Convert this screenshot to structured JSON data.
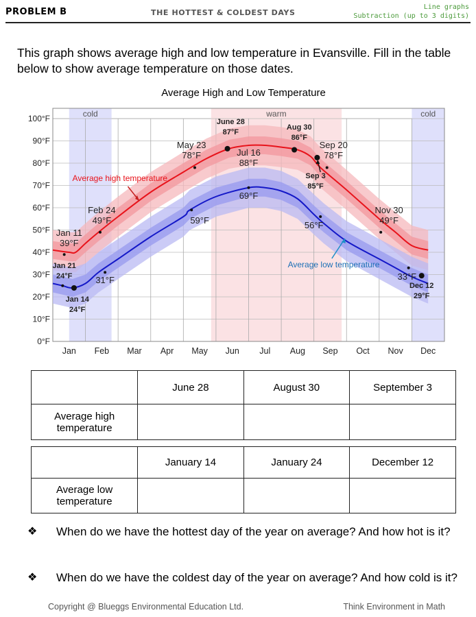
{
  "header": {
    "problem": "PROBLEM B",
    "title": "THE HOTTEST & COLDEST DAYS",
    "topic_line1": "Line graphs",
    "topic_line2": "Subtraction (up to 3 digits)"
  },
  "intro": "This graph shows average high and low temperature in Evansville.  Fill in the table below to show average temperature on those dates.",
  "chart_data": {
    "type": "line",
    "title": "Average High and Low Temperature",
    "categories": [
      "Jan",
      "Feb",
      "Mar",
      "Apr",
      "May",
      "Jun",
      "Jul",
      "Aug",
      "Sep",
      "Oct",
      "Nov",
      "Dec"
    ],
    "ylim": [
      0,
      100
    ],
    "yticks": [
      "0°F",
      "10°F",
      "20°F",
      "30°F",
      "40°F",
      "50°F",
      "60°F",
      "70°F",
      "80°F",
      "90°F",
      "100°F"
    ],
    "season_bands": [
      "cold",
      "warm",
      "cold"
    ],
    "series": [
      {
        "name": "Average high temperature",
        "color": "#e8131b",
        "points": [
          [
            0,
            41
          ],
          [
            0.5,
            40
          ],
          [
            0.7,
            40
          ],
          [
            1.0,
            44
          ],
          [
            1.4,
            49
          ],
          [
            2,
            56
          ],
          [
            3,
            67
          ],
          [
            4,
            76
          ],
          [
            4.7,
            82
          ],
          [
            5.4,
            86.5
          ],
          [
            6,
            88
          ],
          [
            6.5,
            88
          ],
          [
            7,
            87.2
          ],
          [
            7.5,
            86
          ],
          [
            7.9,
            83
          ],
          [
            8.2,
            78
          ],
          [
            9,
            68
          ],
          [
            10,
            55
          ],
          [
            10.5,
            49
          ],
          [
            11,
            43
          ],
          [
            11.5,
            41
          ]
        ]
      },
      {
        "name": "Average low temperature",
        "color": "#1418c8",
        "points": [
          [
            0,
            26
          ],
          [
            0.3,
            25
          ],
          [
            0.6,
            24
          ],
          [
            1.0,
            26
          ],
          [
            1.4,
            31
          ],
          [
            2,
            37
          ],
          [
            3,
            47
          ],
          [
            4,
            56
          ],
          [
            4.2,
            59
          ],
          [
            5,
            65
          ],
          [
            6,
            69
          ],
          [
            6.5,
            69
          ],
          [
            7,
            67.5
          ],
          [
            7.5,
            64
          ],
          [
            8,
            57
          ],
          [
            8.3,
            53
          ],
          [
            9,
            45
          ],
          [
            10,
            37
          ],
          [
            10.5,
            33
          ],
          [
            11,
            29
          ],
          [
            11.5,
            26
          ]
        ]
      }
    ],
    "annotations": [
      {
        "text": "June 28",
        "value": "87°F"
      },
      {
        "text": "Aug 30",
        "value": "86°F"
      },
      {
        "text": "May 23",
        "value": "78°F"
      },
      {
        "text": "Jul 16",
        "value": "88°F"
      },
      {
        "text": "Sep 20",
        "value": "78°F"
      },
      {
        "text": "Sep 3",
        "value": "85°F"
      },
      {
        "text": "Feb 24",
        "value": "49°F"
      },
      {
        "text": "Jan 11",
        "value": "39°F"
      },
      {
        "text": "Nov 30",
        "value": "49°F"
      },
      {
        "text": "Jan 21",
        "value": "24°F"
      },
      {
        "text": "Jan 14",
        "value": "24°F"
      },
      {
        "text": "Dec 12",
        "value": "29°F"
      },
      {
        "value": "69°F"
      },
      {
        "value": "59°F"
      },
      {
        "value": "56°F"
      },
      {
        "value": "31°F"
      },
      {
        "value": "33°F"
      }
    ],
    "series_labels": [
      "Average high temperature",
      "Average low temperature"
    ]
  },
  "table1": {
    "headers": [
      "",
      "June 28",
      "August 30",
      "September 3"
    ],
    "row_label": "Average high temperature"
  },
  "table2": {
    "headers": [
      "",
      "January 14",
      "January 24",
      "December 12"
    ],
    "row_label": "Average low temperature"
  },
  "questions": [
    "When do we have the hottest day of the year on average? And how hot is it?",
    "When do we have the coldest day of the year on average? And how cold is it?"
  ],
  "bullet": "❖",
  "footer": {
    "left": "Copyright @ Blueggs Environmental Education Ltd.",
    "right": "Think Environment in Math"
  }
}
